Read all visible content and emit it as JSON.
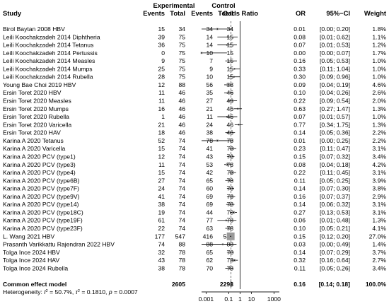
{
  "chart_data": {
    "type": "forest",
    "headers": {
      "study": "Study",
      "experimental": "Experimental",
      "control": "Control",
      "events": "Events",
      "total": "Total",
      "odds_ratio": "Odds Ratio",
      "or": "OR",
      "ci": "95%−CI",
      "weight": "Weight"
    },
    "x_axis": {
      "scale": "log",
      "ticks": [
        "0.001",
        "0.1",
        "1",
        "10",
        "1000"
      ],
      "tick_values": [
        0.001,
        0.1,
        1,
        10,
        1000
      ],
      "range": [
        0.0004,
        3000
      ]
    },
    "studies": [
      {
        "study": "Birol Baytan 2008 HBV",
        "ee": "15",
        "et": "34",
        "ce": "34",
        "ct": "34",
        "or": 0.01,
        "lo": 0.0,
        "hi": 0.2,
        "or_text": "0.01",
        "ci_text": "[0.00; 0.20]",
        "weight": "1.8%"
      },
      {
        "study": "Leili Koochakzadeh 2014 Diphtheria",
        "ee": "39",
        "et": "75",
        "ce": "14",
        "ct": "15",
        "or": 0.08,
        "lo": 0.01,
        "hi": 0.62,
        "or_text": "0.08",
        "ci_text": "[0.01; 0.62]",
        "weight": "1.1%"
      },
      {
        "study": "Leili Koochakzadeh 2014 Tetanus",
        "ee": "36",
        "et": "75",
        "ce": "14",
        "ct": "15",
        "or": 0.07,
        "lo": 0.01,
        "hi": 0.53,
        "or_text": "0.07",
        "ci_text": "[0.01; 0.53]",
        "weight": "1.2%"
      },
      {
        "study": "Leili Koochakzadeh 2014 Pertussis",
        "ee": "0",
        "et": "75",
        "ce": "10",
        "ct": "15",
        "or": 0.0,
        "lo": 0.0,
        "hi": 0.07,
        "or_text": "0.00",
        "ci_text": "[0.00; 0.07]",
        "weight": "1.7%"
      },
      {
        "study": "Leili Koochakzadeh 2014 Measles",
        "ee": "9",
        "et": "75",
        "ce": "7",
        "ct": "15",
        "or": 0.16,
        "lo": 0.05,
        "hi": 0.53,
        "or_text": "0.16",
        "ci_text": "[0.05; 0.53]",
        "weight": "1.0%"
      },
      {
        "study": "Leili Koochakzadeh 2014 Mumps",
        "ee": "25",
        "et": "75",
        "ce": "9",
        "ct": "15",
        "or": 0.33,
        "lo": 0.11,
        "hi": 1.04,
        "or_text": "0.33",
        "ci_text": "[0.11; 1.04]",
        "weight": "1.0%"
      },
      {
        "study": "Leili Koochakzadeh 2014 Rubella",
        "ee": "28",
        "et": "75",
        "ce": "10",
        "ct": "15",
        "or": 0.3,
        "lo": 0.09,
        "hi": 0.96,
        "or_text": "0.30",
        "ci_text": "[0.09; 0.96]",
        "weight": "1.0%"
      },
      {
        "study": "Young Bae Choi 2019 HBV",
        "ee": "12",
        "et": "88",
        "ce": "56",
        "ct": "88",
        "or": 0.09,
        "lo": 0.04,
        "hi": 0.19,
        "or_text": "0.09",
        "ci_text": "[0.04; 0.19]",
        "weight": "4.6%"
      },
      {
        "study": "Ersin Toret 2020 HBV",
        "ee": "11",
        "et": "46",
        "ce": "35",
        "ct": "46",
        "or": 0.1,
        "lo": 0.04,
        "hi": 0.26,
        "or_text": "0.10",
        "ci_text": "[0.04; 0.26]",
        "weight": "2.6%"
      },
      {
        "study": "Ersin Toret 2020 Measles",
        "ee": "11",
        "et": "46",
        "ce": "27",
        "ct": "46",
        "or": 0.22,
        "lo": 0.09,
        "hi": 0.54,
        "or_text": "0.22",
        "ci_text": "[0.09; 0.54]",
        "weight": "2.0%"
      },
      {
        "study": "Ersin Toret 2020 Mumps",
        "ee": "16",
        "et": "46",
        "ce": "21",
        "ct": "46",
        "or": 0.63,
        "lo": 0.27,
        "hi": 1.47,
        "or_text": "0.63",
        "ci_text": "[0.27; 1.47]",
        "weight": "1.3%"
      },
      {
        "study": "Ersin Toret 2020 Rubella",
        "ee": "1",
        "et": "46",
        "ce": "11",
        "ct": "46",
        "or": 0.07,
        "lo": 0.01,
        "hi": 0.57,
        "or_text": "0.07",
        "ci_text": "[0.01; 0.57]",
        "weight": "1.0%"
      },
      {
        "study": "Ersin Toret 2020 Varicella",
        "ee": "21",
        "et": "46",
        "ce": "24",
        "ct": "46",
        "or": 0.77,
        "lo": 0.34,
        "hi": 1.75,
        "or_text": "0.77",
        "ci_text": "[0.34; 1.75]",
        "weight": "1.3%"
      },
      {
        "study": "Ersin Toret 2020 HAV",
        "ee": "18",
        "et": "46",
        "ce": "38",
        "ct": "46",
        "or": 0.14,
        "lo": 0.05,
        "hi": 0.36,
        "or_text": "0.14",
        "ci_text": "[0.05; 0.36]",
        "weight": "2.2%"
      },
      {
        "study": "Karina A 2020 Tetanus",
        "ee": "52",
        "et": "74",
        "ce": "78",
        "ct": "78",
        "or": 0.01,
        "lo": 0.0,
        "hi": 0.25,
        "or_text": "0.01",
        "ci_text": "[0.00; 0.25]",
        "weight": "2.2%"
      },
      {
        "study": "Karina A 2020 Varicella",
        "ee": "15",
        "et": "74",
        "ce": "41",
        "ct": "78",
        "or": 0.23,
        "lo": 0.11,
        "hi": 0.47,
        "or_text": "0.23",
        "ci_text": "[0.11; 0.47]",
        "weight": "3.1%"
      },
      {
        "study": "Karina A 2020 PCV (type1)",
        "ee": "12",
        "et": "74",
        "ce": "43",
        "ct": "78",
        "or": 0.15,
        "lo": 0.07,
        "hi": 0.32,
        "or_text": "0.15",
        "ci_text": "[0.07; 0.32]",
        "weight": "3.4%"
      },
      {
        "study": "Karina A 2020 PCV (type3)",
        "ee": "11",
        "et": "74",
        "ce": "53",
        "ct": "78",
        "or": 0.08,
        "lo": 0.04,
        "hi": 0.18,
        "or_text": "0.08",
        "ci_text": "[0.04; 0.18]",
        "weight": "4.2%"
      },
      {
        "study": "Karina A 2020 PCV (type4)",
        "ee": "15",
        "et": "74",
        "ce": "42",
        "ct": "78",
        "or": 0.22,
        "lo": 0.11,
        "hi": 0.45,
        "or_text": "0.22",
        "ci_text": "[0.11; 0.45]",
        "weight": "3.1%"
      },
      {
        "study": "Karina A 2020 PCV (type6B)",
        "ee": "27",
        "et": "74",
        "ce": "65",
        "ct": "78",
        "or": 0.11,
        "lo": 0.05,
        "hi": 0.25,
        "or_text": "0.11",
        "ci_text": "[0.05; 0.25]",
        "weight": "3.9%"
      },
      {
        "study": "Karina A 2020 PCV (type7F)",
        "ee": "24",
        "et": "74",
        "ce": "60",
        "ct": "78",
        "or": 0.14,
        "lo": 0.07,
        "hi": 0.3,
        "or_text": "0.14",
        "ci_text": "[0.07; 0.30]",
        "weight": "3.8%"
      },
      {
        "study": "Karina A 2020 PCV (type9V)",
        "ee": "41",
        "et": "74",
        "ce": "69",
        "ct": "78",
        "or": 0.16,
        "lo": 0.07,
        "hi": 0.37,
        "or_text": "0.16",
        "ci_text": "[0.07; 0.37]",
        "weight": "2.9%"
      },
      {
        "study": "Karina A 2020 PCV (type14)",
        "ee": "38",
        "et": "74",
        "ce": "69",
        "ct": "78",
        "or": 0.14,
        "lo": 0.06,
        "hi": 0.32,
        "or_text": "0.14",
        "ci_text": "[0.06; 0.32]",
        "weight": "3.1%"
      },
      {
        "study": "Karina A 2020 PCV (type18C)",
        "ee": "19",
        "et": "74",
        "ce": "44",
        "ct": "78",
        "or": 0.27,
        "lo": 0.13,
        "hi": 0.53,
        "or_text": "0.27",
        "ci_text": "[0.13; 0.53]",
        "weight": "3.1%"
      },
      {
        "study": "Karina A 2020 PCV (type19F)",
        "ee": "61",
        "et": "74",
        "ce": "77",
        "ct": "78",
        "or": 0.06,
        "lo": 0.01,
        "hi": 0.48,
        "or_text": "0.06",
        "ci_text": "[0.01; 0.48]",
        "weight": "1.3%"
      },
      {
        "study": "Karina A 2020 PCV (type23F)",
        "ee": "22",
        "et": "74",
        "ce": "63",
        "ct": "78",
        "or": 0.1,
        "lo": 0.05,
        "hi": 0.21,
        "or_text": "0.10",
        "ci_text": "[0.05; 0.21]",
        "weight": "4.1%"
      },
      {
        "study": "L. Wang 2021 HBV",
        "ee": "177",
        "et": "547",
        "ce": "416",
        "ct": "547",
        "or": 0.15,
        "lo": 0.12,
        "hi": 0.2,
        "or_text": "0.15",
        "ci_text": "[0.12; 0.20]",
        "weight": "27.0%"
      },
      {
        "study": "Prasanth Varikkattu Rajendran 2022 HBV",
        "ee": "74",
        "et": "88",
        "ce": "88",
        "ct": "88",
        "or": 0.03,
        "lo": 0.0,
        "hi": 0.49,
        "or_text": "0.03",
        "ci_text": "[0.00; 0.49]",
        "weight": "1.4%"
      },
      {
        "study": "Tolga Ince 2024 HBV",
        "ee": "32",
        "et": "78",
        "ce": "65",
        "ct": "78",
        "or": 0.14,
        "lo": 0.07,
        "hi": 0.29,
        "or_text": "0.14",
        "ci_text": "[0.07; 0.29]",
        "weight": "3.7%"
      },
      {
        "study": "Tolga Ince 2024 HAV",
        "ee": "43",
        "et": "78",
        "ce": "62",
        "ct": "78",
        "or": 0.32,
        "lo": 0.16,
        "hi": 0.64,
        "or_text": "0.32",
        "ci_text": "[0.16; 0.64]",
        "weight": "2.7%"
      },
      {
        "study": "Tolga Ince 2024 Rubella",
        "ee": "38",
        "et": "78",
        "ce": "70",
        "ct": "78",
        "or": 0.11,
        "lo": 0.05,
        "hi": 0.26,
        "or_text": "0.11",
        "ci_text": "[0.05; 0.26]",
        "weight": "3.4%"
      }
    ],
    "pooled": {
      "label": "Common effect model",
      "exp_total": "2605",
      "ctrl_total": "2293",
      "or": 0.16,
      "lo": 0.14,
      "hi": 0.18,
      "or_text": "0.16",
      "ci_text": "[0.14; 0.18]",
      "weight": "100.0%"
    },
    "heterogeneity": {
      "prefix": "Heterogeneity: ",
      "i2": "50.7%",
      "tau2": "0.1810",
      "p": "0.0007"
    },
    "reference_line": 1,
    "colors": {
      "text": "#000000",
      "box": "#9a9a9a",
      "line": "#000000",
      "pooled_dashed": "#555555"
    }
  }
}
